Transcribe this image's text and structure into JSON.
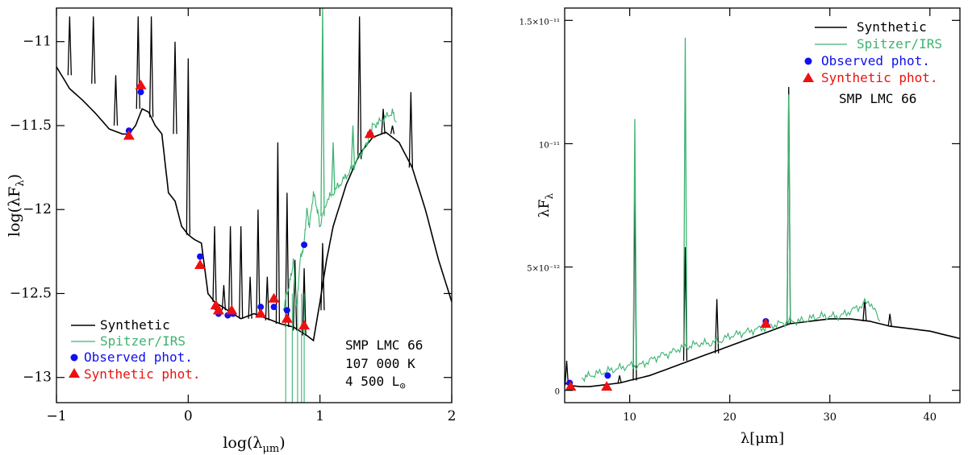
{
  "colors": {
    "synthetic": "#000000",
    "spitzer": "#3cb371",
    "observed": "#1010ee",
    "synthphot": "#ee1010"
  },
  "chart_data": [
    {
      "type": "line",
      "xlabel_main": "log(λ",
      "xlabel_sub": "μm",
      "xlabel_tail": ")",
      "ylabel_main": "log(λF",
      "ylabel_sub": "λ",
      "ylabel_tail": ")",
      "xlim": [
        -1,
        2
      ],
      "ylim": [
        -13.15,
        -10.8
      ],
      "xticks": [
        "−1",
        "0",
        "1",
        "2"
      ],
      "xtick_values": [
        -1,
        0,
        1,
        2
      ],
      "yticks": [
        "−11",
        "−11.5",
        "−12",
        "−12.5",
        "−13"
      ],
      "ytick_values": [
        -11,
        -11.5,
        -12,
        -12.5,
        -13
      ],
      "legend": [
        "Synthetic",
        "Spitzer/IRS",
        "Observed phot.",
        "Synthetic phot."
      ],
      "notes": {
        "object": "SMP LMC 66",
        "temperature": "107 000 K",
        "luminosity": "4 500 L",
        "lum_symbol": "⊙"
      },
      "series": [
        {
          "name": "Synthetic",
          "kind": "continuum",
          "x": [
            -1.0,
            -0.9,
            -0.8,
            -0.7,
            -0.6,
            -0.5,
            -0.45,
            -0.4,
            -0.35,
            -0.3,
            -0.25,
            -0.2,
            -0.15,
            -0.1,
            -0.05,
            0.0,
            0.05,
            0.1,
            0.15,
            0.2,
            0.3,
            0.4,
            0.5,
            0.6,
            0.7,
            0.8,
            0.9,
            0.95,
            1.0,
            1.05,
            1.1,
            1.2,
            1.3,
            1.4,
            1.5,
            1.6,
            1.7,
            1.8,
            1.9,
            2.0
          ],
          "y": [
            -11.15,
            -11.28,
            -11.35,
            -11.43,
            -11.52,
            -11.55,
            -11.55,
            -11.5,
            -11.4,
            -11.42,
            -11.5,
            -11.55,
            -11.9,
            -11.95,
            -12.1,
            -12.15,
            -12.18,
            -12.2,
            -12.5,
            -12.55,
            -12.6,
            -12.65,
            -12.62,
            -12.65,
            -12.68,
            -12.7,
            -12.75,
            -12.78,
            -12.55,
            -12.3,
            -12.1,
            -11.85,
            -11.67,
            -11.57,
            -11.54,
            -11.6,
            -11.75,
            -12.0,
            -12.3,
            -12.55
          ],
          "lines": [
            [
              -0.9,
              -10.85
            ],
            [
              -0.72,
              -10.85
            ],
            [
              -0.55,
              -11.2
            ],
            [
              -0.38,
              -10.85
            ],
            [
              -0.28,
              -10.85
            ],
            [
              -0.1,
              -11.0
            ],
            [
              0.0,
              -11.1
            ],
            [
              0.2,
              -12.1
            ],
            [
              0.27,
              -12.45
            ],
            [
              0.32,
              -12.1
            ],
            [
              0.4,
              -12.1
            ],
            [
              0.47,
              -12.4
            ],
            [
              0.53,
              -12.0
            ],
            [
              0.6,
              -12.4
            ],
            [
              0.68,
              -11.6
            ],
            [
              0.75,
              -11.9
            ],
            [
              0.81,
              -12.3
            ],
            [
              0.88,
              -12.35
            ],
            [
              1.02,
              -12.2
            ],
            [
              1.3,
              -10.85
            ],
            [
              1.48,
              -11.4
            ],
            [
              1.55,
              -11.5
            ],
            [
              1.69,
              -11.3
            ]
          ],
          "line_depth": [
            -11.2,
            -11.25,
            -11.5,
            -11.4,
            -11.45,
            -11.55,
            -12.15,
            -12.55,
            -12.6,
            -12.62,
            -12.65,
            -12.65,
            -12.64,
            -12.66,
            -12.68,
            -12.7,
            -12.72,
            -12.75,
            -12.6,
            -11.7,
            -11.55,
            -11.55,
            -11.75
          ]
        },
        {
          "name": "Spitzer/IRS",
          "kind": "noisy",
          "x": [
            0.72,
            0.75,
            0.78,
            0.8,
            0.82,
            0.85,
            0.88,
            0.9,
            0.92,
            0.95,
            0.98,
            1.0,
            1.05,
            1.1,
            1.15,
            1.2,
            1.25,
            1.3,
            1.35,
            1.38,
            1.4,
            1.45,
            1.5,
            1.55,
            1.58
          ],
          "y": [
            -12.6,
            -12.5,
            -12.4,
            -12.3,
            -12.6,
            -12.3,
            -12.2,
            -12.0,
            -12.1,
            -11.9,
            -12.0,
            -12.1,
            -11.95,
            -11.9,
            -11.85,
            -11.8,
            -11.75,
            -11.68,
            -11.62,
            -11.55,
            -11.5,
            -11.48,
            -11.45,
            -11.42,
            -11.48
          ],
          "lines": [
            [
              1.02,
              -10.8
            ],
            [
              1.1,
              -11.6
            ],
            [
              1.25,
              -11.5
            ]
          ],
          "dips": [
            [
              0.74,
              -13.15
            ],
            [
              0.79,
              -13.15
            ],
            [
              0.83,
              -13.15
            ],
            [
              0.86,
              -13.15
            ],
            [
              0.88,
              -13.15
            ]
          ]
        }
      ],
      "observed_phot": {
        "x": [
          -0.45,
          -0.36,
          0.09,
          0.21,
          0.23,
          0.3,
          0.34,
          0.55,
          0.65,
          0.75,
          0.88,
          1.38
        ],
        "y": [
          -11.53,
          -11.3,
          -12.28,
          -12.58,
          -12.62,
          -12.63,
          -12.62,
          -12.58,
          -12.58,
          -12.6,
          -12.21,
          -11.55
        ]
      },
      "synthetic_phot": {
        "x": [
          -0.45,
          -0.36,
          0.09,
          0.21,
          0.23,
          0.33,
          0.55,
          0.65,
          0.75,
          0.88,
          1.38
        ],
        "y": [
          -11.56,
          -11.26,
          -12.33,
          -12.57,
          -12.6,
          -12.6,
          -12.62,
          -12.53,
          -12.65,
          -12.69,
          -11.55
        ]
      }
    },
    {
      "type": "line",
      "xlabel_main": "λ[μm]",
      "ylabel_main": "λF",
      "ylabel_sub": "λ",
      "xlim": [
        3.5,
        43
      ],
      "ylim": [
        -0.05,
        1.55
      ],
      "xticks": [
        "10",
        "20",
        "30",
        "40"
      ],
      "xtick_values": [
        10,
        20,
        30,
        40
      ],
      "yticks": [
        "0",
        "5×10⁻¹²",
        "10⁻¹¹",
        "1.5×10⁻¹¹"
      ],
      "ytick_values": [
        0,
        0.5,
        1.0,
        1.5
      ],
      "y_unit_note": "values in units of 10⁻¹¹",
      "legend": [
        "Synthetic",
        "Spitzer/IRS",
        "Observed phot.",
        "Synthetic phot."
      ],
      "notes": {
        "object": "SMP LMC 66"
      },
      "series": [
        {
          "name": "Synthetic",
          "kind": "continuum",
          "x": [
            3.5,
            4,
            5,
            6,
            7,
            8,
            9,
            10,
            12,
            14,
            16,
            18,
            20,
            22,
            24,
            26,
            28,
            30,
            32,
            34,
            36,
            38,
            40,
            43
          ],
          "y": [
            0.03,
            0.02,
            0.015,
            0.015,
            0.02,
            0.025,
            0.03,
            0.04,
            0.06,
            0.09,
            0.12,
            0.15,
            0.18,
            0.21,
            0.24,
            0.27,
            0.28,
            0.29,
            0.29,
            0.28,
            0.26,
            0.25,
            0.24,
            0.21
          ],
          "lines": [
            [
              3.7,
              0.12
            ],
            [
              8.99,
              0.06
            ],
            [
              10.51,
              0.85
            ],
            [
              15.55,
              0.58
            ],
            [
              18.71,
              0.37
            ],
            [
              25.89,
              1.23
            ],
            [
              33.48,
              0.37
            ],
            [
              36.0,
              0.31
            ]
          ],
          "line_depth": [
            0.02,
            0.03,
            0.04,
            0.12,
            0.15,
            0.27,
            0.28,
            0.26
          ]
        },
        {
          "name": "Spitzer/IRS",
          "kind": "noisy",
          "x": [
            5.2,
            6,
            7,
            8,
            9,
            10,
            11,
            12,
            13,
            14,
            15,
            16,
            17,
            18,
            19,
            20,
            21,
            22,
            23,
            24,
            25,
            26,
            27,
            28,
            29,
            30,
            31,
            32,
            33,
            34,
            35
          ],
          "y": [
            0.05,
            0.06,
            0.07,
            0.08,
            0.09,
            0.1,
            0.1,
            0.12,
            0.14,
            0.15,
            0.17,
            0.18,
            0.19,
            0.19,
            0.2,
            0.22,
            0.23,
            0.24,
            0.25,
            0.26,
            0.27,
            0.28,
            0.28,
            0.29,
            0.3,
            0.3,
            0.3,
            0.32,
            0.34,
            0.36,
            0.28
          ],
          "lines": [
            [
              10.51,
              1.1
            ],
            [
              15.55,
              1.43
            ],
            [
              25.89,
              1.2
            ],
            [
              33.48,
              0.37
            ]
          ],
          "dips": []
        }
      ],
      "observed_phot": {
        "x": [
          4.0,
          7.8,
          23.6
        ],
        "y": [
          0.03,
          0.06,
          0.28
        ]
      },
      "synthetic_phot": {
        "x": [
          4.1,
          7.7,
          23.6
        ],
        "y": [
          0.015,
          0.015,
          0.27
        ]
      }
    }
  ]
}
